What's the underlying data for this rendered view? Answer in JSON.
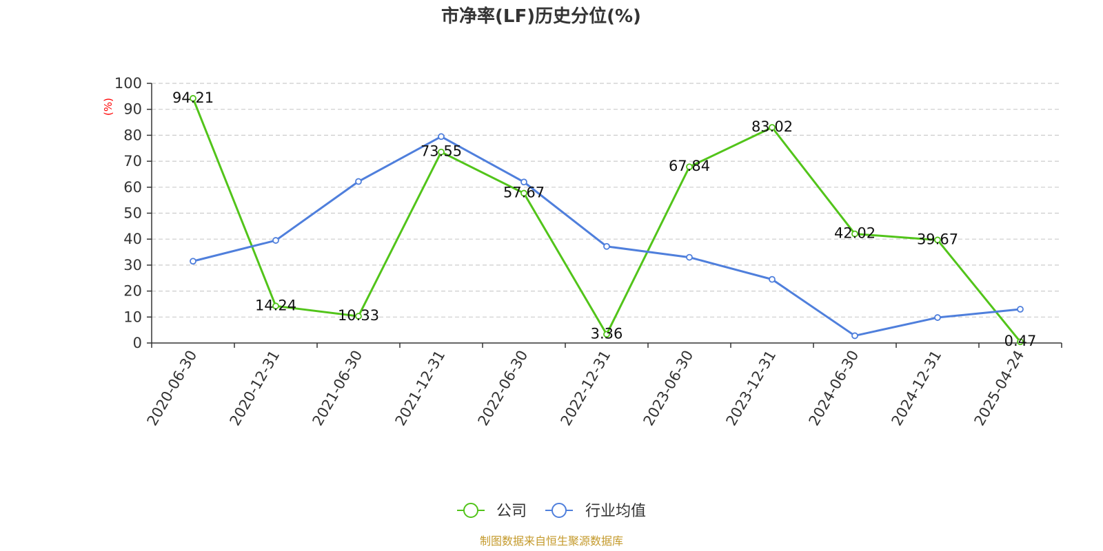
{
  "chart_data": {
    "type": "line",
    "title": "市净率(LF)历史分位(%)",
    "ylabel": "(%)",
    "xlabel": "",
    "ylim": [
      0,
      100
    ],
    "yticks": [
      0,
      10,
      20,
      30,
      40,
      50,
      60,
      70,
      80,
      90,
      100
    ],
    "categories": [
      "2020-06-30",
      "2020-12-31",
      "2021-06-30",
      "2021-12-31",
      "2022-06-30",
      "2022-12-31",
      "2023-06-30",
      "2023-12-31",
      "2024-06-30",
      "2024-12-31",
      "2025-04-24"
    ],
    "series": [
      {
        "name": "公司",
        "color": "#52c41a",
        "values": [
          94.21,
          14.24,
          10.33,
          73.55,
          57.67,
          3.36,
          67.84,
          83.02,
          42.02,
          39.67,
          0.47
        ],
        "labels": [
          "94.21",
          "14.24",
          "10.33",
          "73.55",
          "57.67",
          "3.36",
          "67.84",
          "83.02",
          "42.02",
          "39.67",
          "0.47"
        ],
        "show_labels": true
      },
      {
        "name": "行业均值",
        "color": "#4f7fdc",
        "values": [
          31.5,
          39.5,
          62.2,
          79.5,
          62.0,
          37.2,
          33.0,
          24.5,
          2.8,
          9.8,
          13.0
        ],
        "show_labels": false
      }
    ],
    "grid": true,
    "legend_position": "bottom-center"
  },
  "source": "制图数据来自恒生聚源数据库"
}
